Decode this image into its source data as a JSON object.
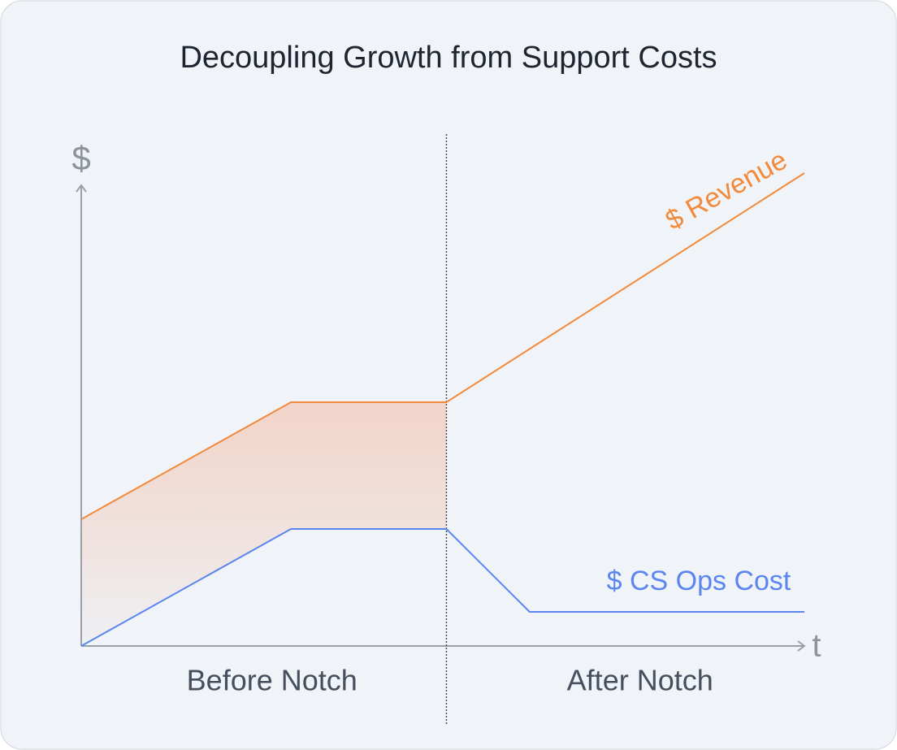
{
  "chart_data": {
    "type": "line",
    "title": "Decoupling Growth from Support Costs",
    "ylabel": "$",
    "xlabel": "t",
    "regions": [
      "Before Notch",
      "After Notch"
    ],
    "notch_x": 10.1,
    "xlim": [
      0,
      20
    ],
    "ylim": [
      0,
      10
    ],
    "fill_between": true,
    "fill_color": "#f2cfc1",
    "series": [
      {
        "name": "$ Revenue",
        "color": "#f28a3c",
        "x": [
          0,
          5.8,
          10.1,
          20
        ],
        "values": [
          2.6,
          5.0,
          5.0,
          9.7
        ]
      },
      {
        "name": "$ CS Ops Cost",
        "color": "#5b86ef",
        "x": [
          0,
          5.8,
          10.1,
          12.4,
          20
        ],
        "values": [
          0,
          2.4,
          2.4,
          0.7,
          0.7
        ]
      }
    ]
  }
}
